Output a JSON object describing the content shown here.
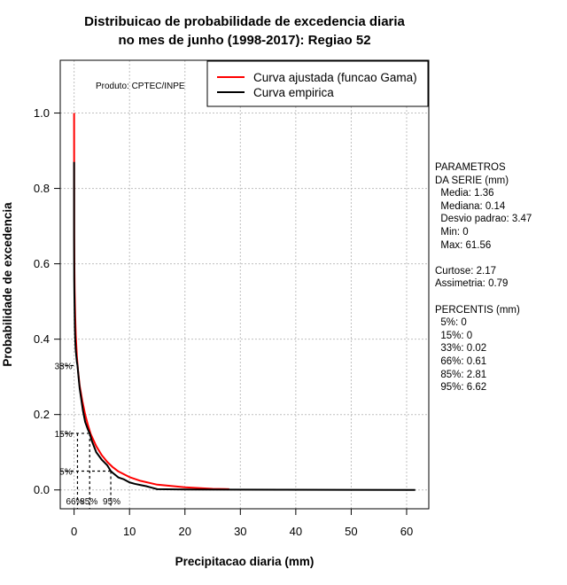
{
  "chart_data": {
    "type": "line",
    "title": [
      "Distribuicao de probabilidade de excedencia diaria",
      "no mes de junho (1998-2017): Regiao 52"
    ],
    "xlabel": "Precipitacao diaria (mm)",
    "ylabel": "Probabilidade de excedencia",
    "xlim": [
      -2.5,
      64
    ],
    "ylim": [
      -0.05,
      1.14
    ],
    "xticks": [
      0,
      10,
      20,
      30,
      40,
      50,
      60
    ],
    "yticks": [
      "0.0",
      "0.2",
      "0.4",
      "0.6",
      "0.8",
      "1.0"
    ],
    "grid": true,
    "legend_position": "top-right",
    "product_label": "Produto: CPTEC/INPE",
    "series": [
      {
        "name": "Curva ajustada (funcao Gama)",
        "color": "#ff0000",
        "x": [
          0,
          0.02,
          0.05,
          0.1,
          0.2,
          0.3,
          0.5,
          0.7,
          1.0,
          1.5,
          2.0,
          2.5,
          3.0,
          4.0,
          5.0,
          6.0,
          7.0,
          8.0,
          10.0,
          12.0,
          15.0,
          20.0,
          25.0,
          28.0
        ],
        "y": [
          1.0,
          0.68,
          0.6,
          0.53,
          0.46,
          0.41,
          0.355,
          0.318,
          0.277,
          0.235,
          0.2,
          0.172,
          0.148,
          0.116,
          0.092,
          0.074,
          0.06,
          0.049,
          0.034,
          0.024,
          0.014,
          0.007,
          0.003,
          0.002
        ]
      },
      {
        "name": "Curva empirica",
        "color": "#000000",
        "x": [
          0,
          0.0,
          0.02,
          0.05,
          0.1,
          0.14,
          0.2,
          0.3,
          0.5,
          0.61,
          0.8,
          1.0,
          1.3,
          1.6,
          2.0,
          2.5,
          2.81,
          3.2,
          3.6,
          4.0,
          5.0,
          6.0,
          6.62,
          7.0,
          8.0,
          9.0,
          10.0,
          11.0,
          12.0,
          13.0,
          14.0,
          15.0,
          20.0,
          61.56
        ],
        "y": [
          0.87,
          0.67,
          0.56,
          0.52,
          0.47,
          0.43,
          0.4,
          0.37,
          0.34,
          0.33,
          0.3,
          0.27,
          0.24,
          0.21,
          0.18,
          0.16,
          0.15,
          0.13,
          0.115,
          0.1,
          0.08,
          0.065,
          0.05,
          0.045,
          0.033,
          0.028,
          0.02,
          0.016,
          0.013,
          0.01,
          0.006,
          0.002,
          0.001,
          0.0
        ]
      }
    ],
    "percentile_guides": [
      {
        "label": "33%",
        "x": 0.02,
        "p": 0.33
      },
      {
        "label": "15%",
        "x": 0.0,
        "p": 0.15
      },
      {
        "label": "5%",
        "x": 0.0,
        "p": 0.05
      }
    ],
    "percentile_markers": [
      {
        "label": "66%",
        "x": 0.61,
        "p": 0.15
      },
      {
        "label": "85%",
        "x": 2.81,
        "p": 0.15
      },
      {
        "label": "95%",
        "x": 6.62,
        "p": 0.05
      }
    ]
  },
  "side_panel": {
    "lines": [
      "PARAMETROS",
      "DA SERIE (mm)",
      "  Media: 1.36",
      "  Mediana: 0.14",
      "  Desvio padrao: 3.47",
      "  Min: 0",
      "  Max: 61.56",
      "",
      "Curtose: 2.17",
      "Assimetria: 0.79",
      "",
      "PERCENTIS (mm)",
      "  5%: 0",
      "  15%: 0",
      "  33%: 0.02",
      "  66%: 0.61",
      "  85%: 2.81",
      "  95%: 6.62"
    ]
  }
}
